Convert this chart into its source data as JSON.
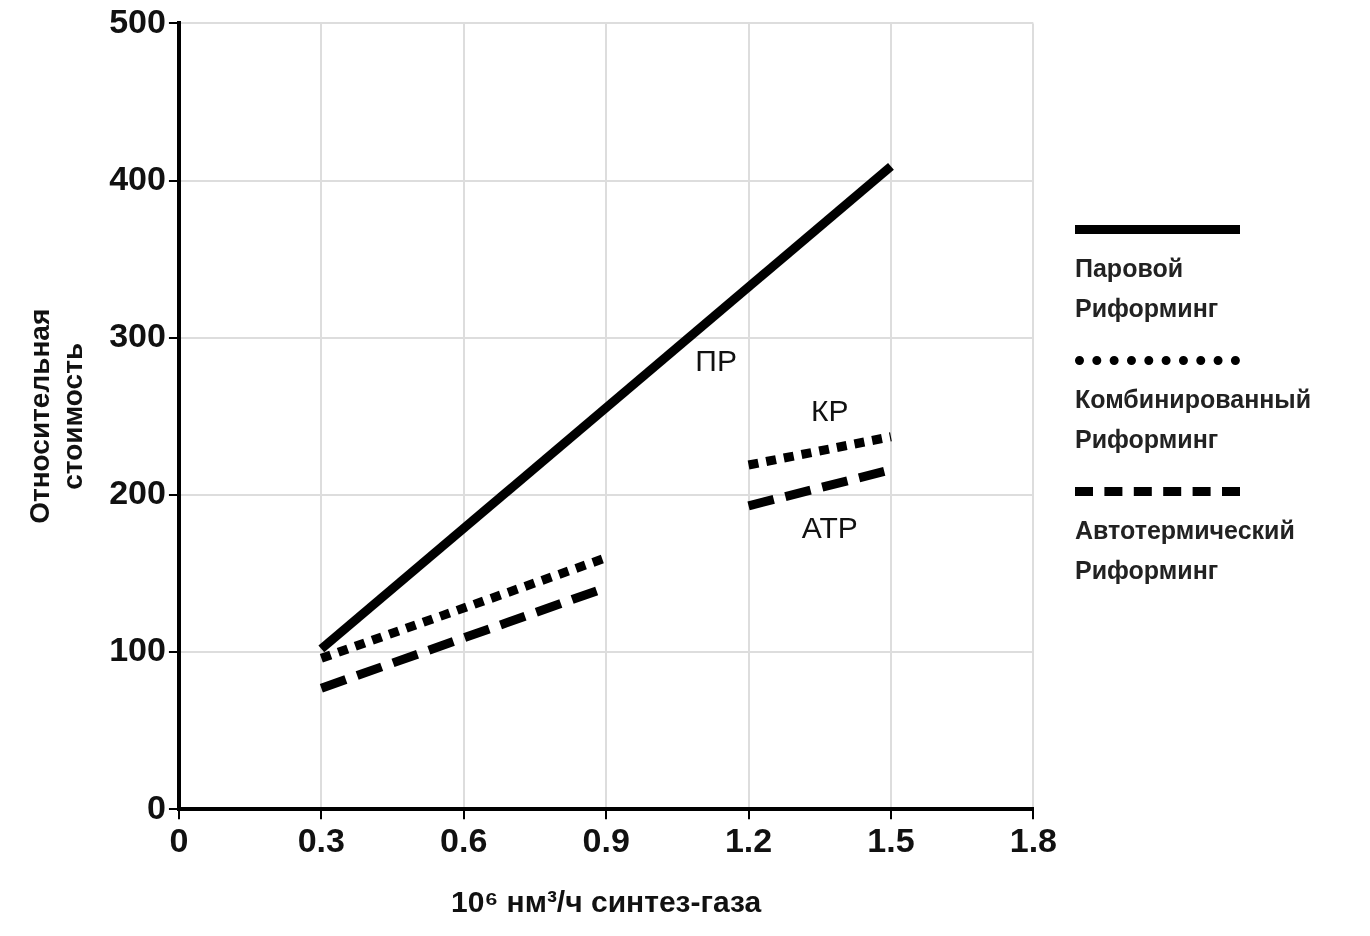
{
  "chart_data": {
    "type": "line",
    "xlabel": "10⁶ нм³/ч синтез-газа",
    "ylabel": "Относительная стоимость",
    "xlim": [
      0,
      1.8
    ],
    "xticks": [
      0,
      0.3,
      0.6,
      0.9,
      1.2,
      1.5,
      1.8
    ],
    "ylim": [
      0,
      500
    ],
    "yticks": [
      0,
      100,
      200,
      300,
      400,
      500
    ],
    "grid": true,
    "legend": "right",
    "marker": "none",
    "series": [
      {
        "name": "Паровой Риформинг",
        "color": "#000000",
        "line_style": "solid",
        "x": [
          0.3,
          1.5
        ],
        "values": [
          102,
          409
        ]
      },
      {
        "name": "Комбинированный Риформинг",
        "color": "#000000",
        "line_style": "dotted",
        "x": [
          0.3,
          0.9,
          1.05,
          1.2,
          1.5
        ],
        "values": [
          96,
          160,
          null,
          219,
          237
        ]
      },
      {
        "name": "Автотермический Риформинг",
        "color": "#000000",
        "line_style": "dashed",
        "x": [
          0.3,
          0.9,
          1.05,
          1.2,
          1.5
        ],
        "values": [
          77,
          141,
          null,
          193,
          216
        ]
      }
    ],
    "annotations": [
      "ПР",
      "КР",
      "АТР"
    ]
  }
}
